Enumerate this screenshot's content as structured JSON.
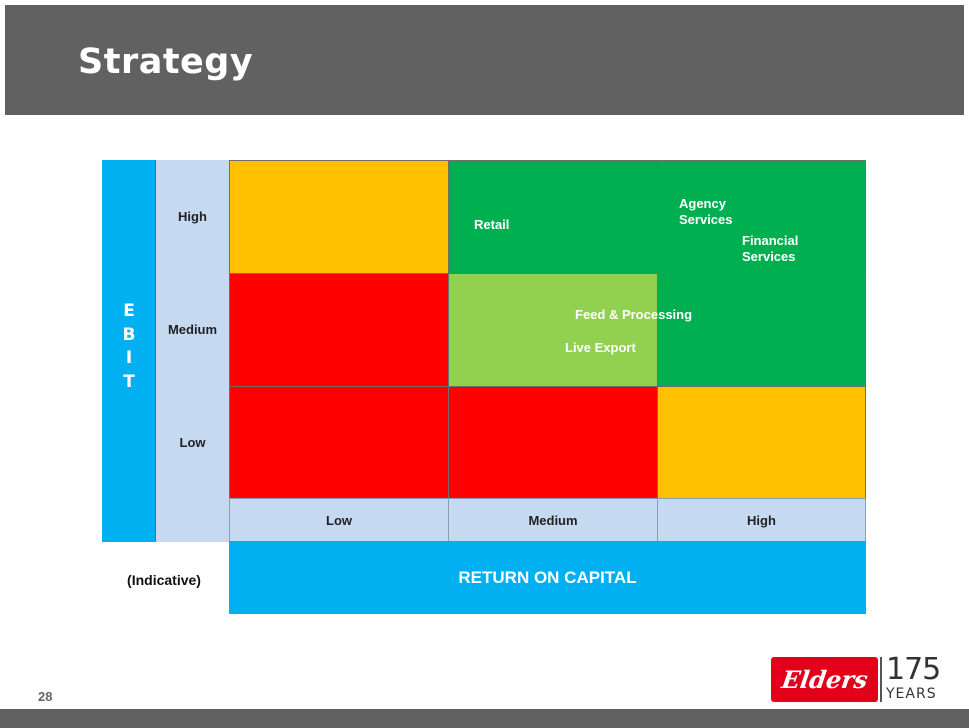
{
  "slide": {
    "title": "Strategy",
    "page_number": "28",
    "indicative_label": "(Indicative)"
  },
  "y_axis": {
    "title_letters": "E\nB\nI\nT",
    "levels": [
      "High",
      "Medium",
      "Low"
    ]
  },
  "x_axis": {
    "title": "RETURN ON CAPITAL",
    "levels": [
      "Low",
      "Medium",
      "High"
    ]
  },
  "matrix": {
    "rows": [
      [
        "#ffc000",
        "#00b050",
        "#00b050"
      ],
      [
        "#ff0000",
        "#92d050",
        "#00b050"
      ],
      [
        "#ff0000",
        "#ff0000",
        "#ffc000"
      ]
    ]
  },
  "business_units": {
    "retail": "Retail",
    "agency": "Agency\nServices",
    "financial": "Financial\nServices",
    "feed": "Feed & Processing",
    "live_export": "Live Export"
  },
  "logo": {
    "brand": "Elders",
    "years_number": "175",
    "years_word": "YEARS",
    "brand_color": "#e2001a"
  }
}
